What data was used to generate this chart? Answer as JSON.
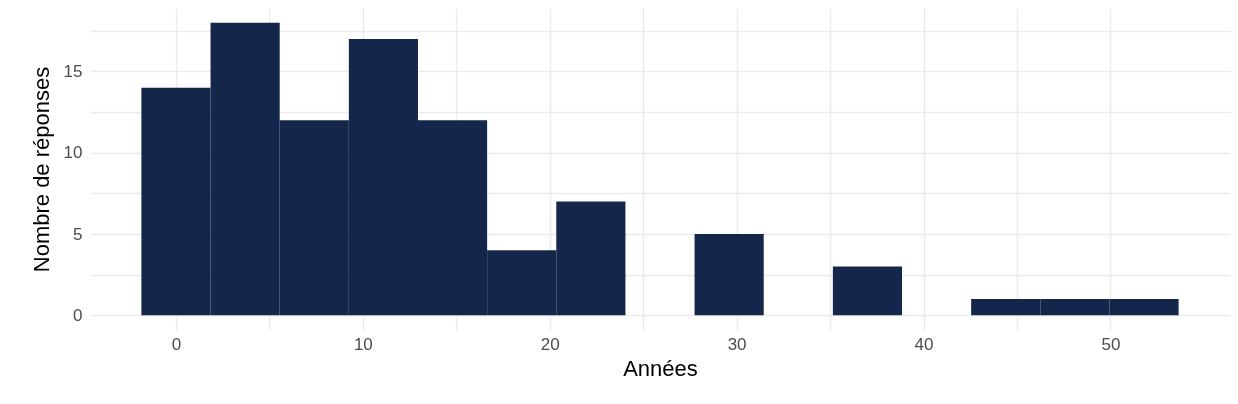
{
  "chart_data": {
    "type": "histogram",
    "xlabel": "Années",
    "ylabel": "Nombre de réponses",
    "bins": [
      -1.85,
      1.85,
      5.55,
      9.25,
      12.95,
      16.65,
      20.35,
      24.05,
      27.75,
      31.45,
      35.15,
      38.85,
      42.55,
      46.25,
      49.95,
      53.65
    ],
    "values": [
      14,
      18,
      12,
      17,
      12,
      4,
      7,
      0,
      5,
      0,
      3,
      0,
      1,
      1,
      1
    ],
    "color": "#14264a",
    "grid": true,
    "xlim": [
      -4.6,
      56.4
    ],
    "ylim": [
      -0.9,
      18.9
    ],
    "xticks": [
      0,
      {
        "value": 5,
        "label": null
      },
      10,
      {
        "value": 15,
        "label": null
      },
      20,
      {
        "value": 25,
        "label": null
      },
      30,
      {
        "value": 35,
        "label": null
      },
      40,
      {
        "value": 45,
        "label": null
      },
      50
    ],
    "yticks": [
      0,
      {
        "value": 2.5,
        "label": null
      },
      5,
      {
        "value": 7.5,
        "label": null
      },
      10,
      {
        "value": 12.5,
        "label": null
      },
      15,
      {
        "value": 17.5,
        "label": null
      }
    ]
  }
}
